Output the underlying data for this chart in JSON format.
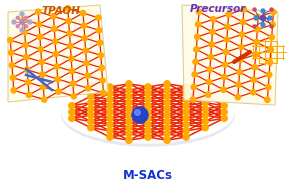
{
  "background_color": "#ffffff",
  "label_tpaoh": "TPAOH",
  "label_precursor": "Precursor",
  "label_msacs": "M-SACs",
  "label_tpaoh_color": "#cc5500",
  "label_precursor_color": "#6633bb",
  "label_msacs_color": "#1133cc",
  "zeolite_node_color": "#ffaa00",
  "zeolite_edge_color": "#ee2200",
  "zeolite_bg_color": "#fffbe8",
  "single_atom_color": "#2244cc",
  "scissors_color": "#4466cc",
  "net_color": "#ffaa00",
  "dashed_color": "#3344cc",
  "fig_width": 2.92,
  "fig_height": 1.89,
  "dpi": 100
}
